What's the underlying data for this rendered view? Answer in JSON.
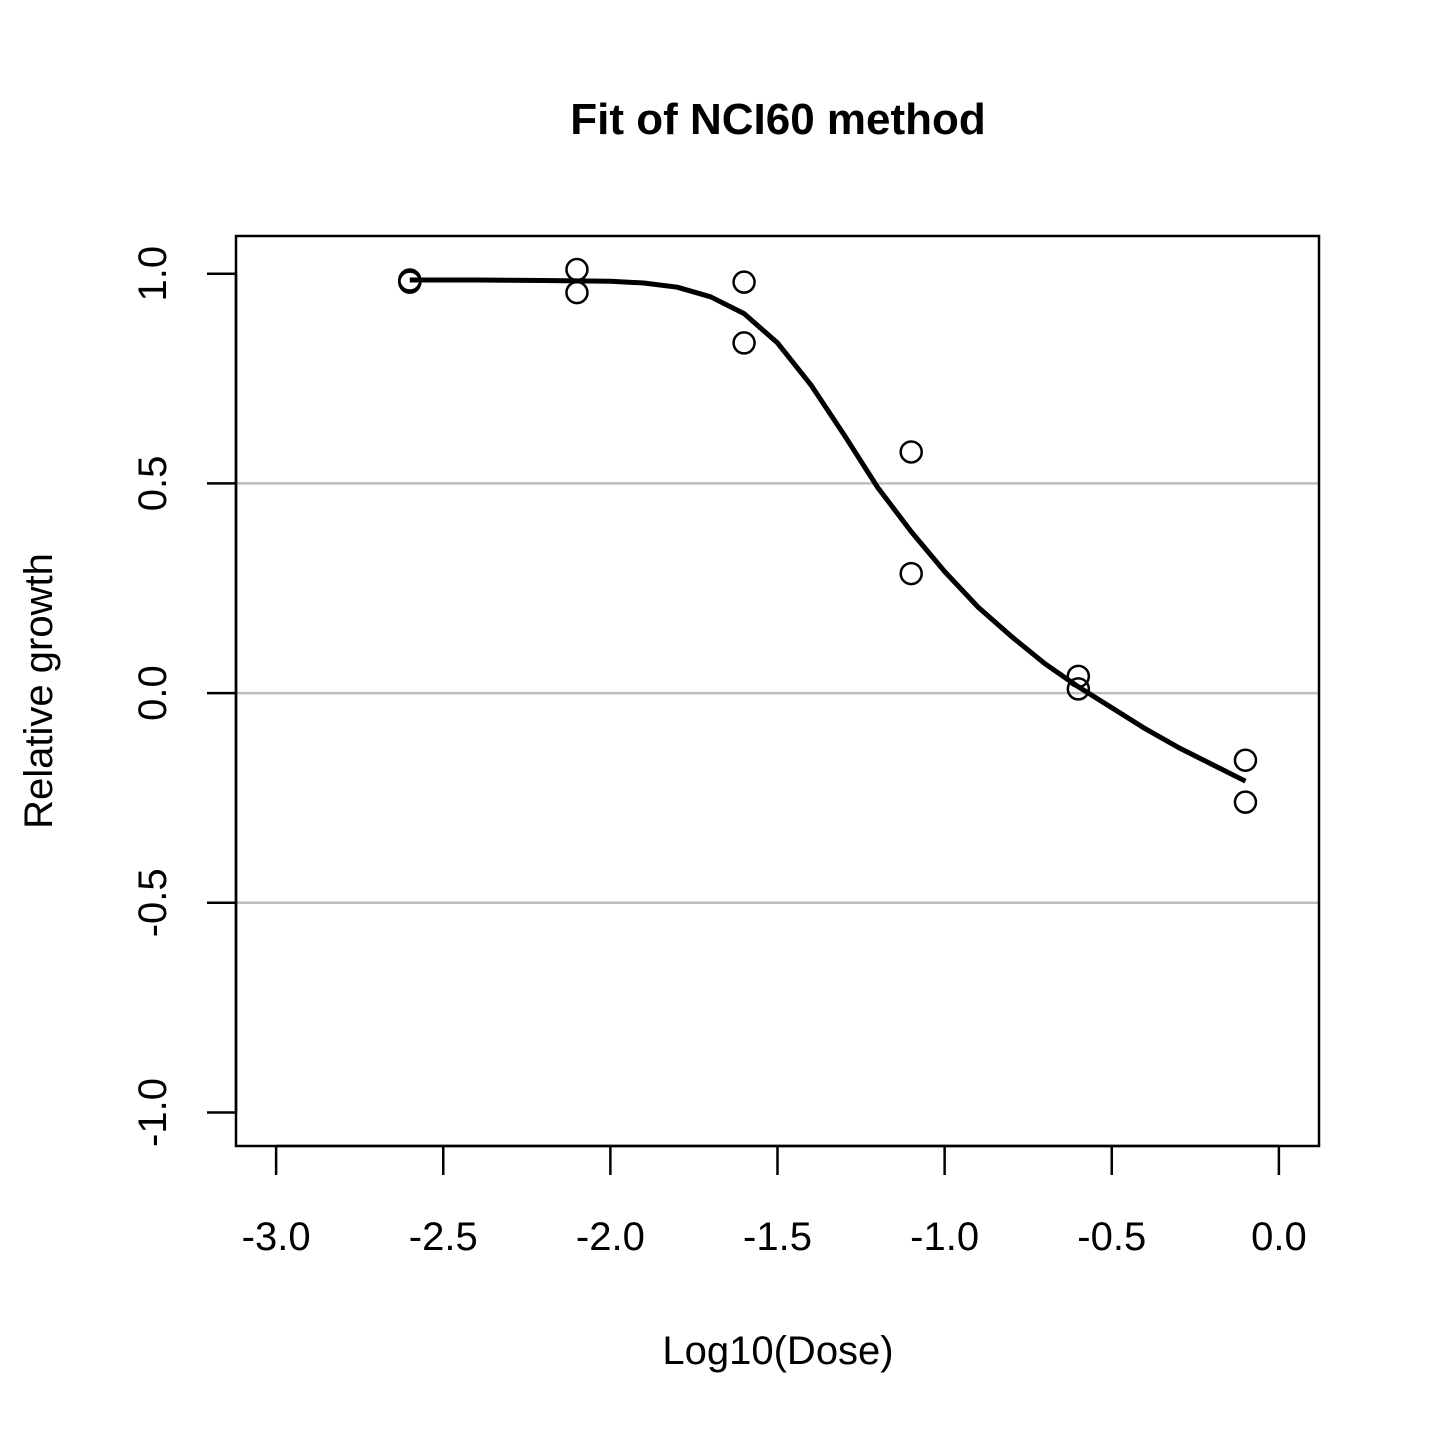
{
  "chart_data": {
    "type": "scatter",
    "title": "Fit of NCI60 method",
    "xlabel": "Log10(Dose)",
    "ylabel": "Relative growth",
    "xlim": [
      -3.12,
      0.12
    ],
    "ylim": [
      -1.08,
      1.09
    ],
    "x_ticks": [
      -3.0,
      -2.5,
      -2.0,
      -1.5,
      -1.0,
      -0.5,
      0.0
    ],
    "x_tick_labels": [
      "-3.0",
      "-2.5",
      "-2.0",
      "-1.5",
      "-1.0",
      "-0.5",
      "0.0"
    ],
    "y_ticks": [
      -1.0,
      -0.5,
      0.0,
      0.5,
      1.0
    ],
    "y_tick_labels": [
      "-1.0",
      "-0.5",
      "0.0",
      "0.5",
      "1.0"
    ],
    "reference_lines_y": [
      -0.5,
      0.0,
      0.5
    ],
    "reference_line_color": "#bebebe",
    "grid": false,
    "series": [
      {
        "kind": "points",
        "marker": "open-circle",
        "color": "#000000",
        "x": [
          -2.6,
          -2.6,
          -2.1,
          -2.1,
          -1.6,
          -1.6,
          -1.1,
          -1.1,
          -0.6,
          -0.6,
          -0.1,
          -0.1
        ],
        "y": [
          0.985,
          0.98,
          1.01,
          0.955,
          0.98,
          0.835,
          0.575,
          0.285,
          0.04,
          0.01,
          -0.16,
          -0.26
        ]
      },
      {
        "kind": "fitted-curve",
        "color": "#000000",
        "x": [
          -2.6,
          -2.4,
          -2.2,
          -2.0,
          -1.9,
          -1.8,
          -1.7,
          -1.6,
          -1.5,
          -1.4,
          -1.3,
          -1.2,
          -1.1,
          -1.0,
          -0.9,
          -0.8,
          -0.7,
          -0.6,
          -0.5,
          -0.4,
          -0.3,
          -0.2,
          -0.1
        ],
        "y": [
          0.985,
          0.985,
          0.984,
          0.982,
          0.978,
          0.968,
          0.945,
          0.905,
          0.835,
          0.735,
          0.615,
          0.49,
          0.385,
          0.29,
          0.205,
          0.135,
          0.07,
          0.015,
          -0.035,
          -0.085,
          -0.13,
          -0.17,
          -0.21
        ]
      }
    ]
  }
}
